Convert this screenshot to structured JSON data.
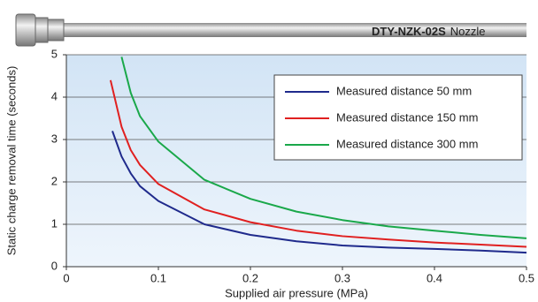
{
  "chart_data": {
    "type": "line",
    "annotations": [
      "DTY-NZK-02S",
      "Nozzle"
    ],
    "xlabel": "Supplied air pressure (MPa)",
    "ylabel": "Static charge removal time (seconds)",
    "xlim": [
      0,
      0.5
    ],
    "ylim": [
      0,
      5
    ],
    "xticks": [
      0,
      0.1,
      0.2,
      0.3,
      0.4,
      0.5
    ],
    "yticks": [
      0,
      1,
      2,
      3,
      4,
      5
    ],
    "grid": true,
    "legend": "upper right",
    "series": [
      {
        "name": "Measured distance 50 mm",
        "color": "#1f2a8c",
        "x": [
          0.05,
          0.06,
          0.07,
          0.08,
          0.1,
          0.15,
          0.2,
          0.25,
          0.3,
          0.35,
          0.4,
          0.45,
          0.5
        ],
        "values": [
          3.2,
          2.6,
          2.2,
          1.9,
          1.55,
          1.0,
          0.75,
          0.6,
          0.5,
          0.45,
          0.42,
          0.38,
          0.33
        ]
      },
      {
        "name": "Measured distance 150 mm",
        "color": "#e02020",
        "x": [
          0.048,
          0.06,
          0.07,
          0.08,
          0.1,
          0.15,
          0.2,
          0.25,
          0.3,
          0.35,
          0.4,
          0.45,
          0.5
        ],
        "values": [
          4.4,
          3.3,
          2.75,
          2.4,
          1.95,
          1.35,
          1.05,
          0.85,
          0.72,
          0.64,
          0.57,
          0.52,
          0.47
        ]
      },
      {
        "name": "Measured distance 300 mm",
        "color": "#1aa84a",
        "x": [
          0.06,
          0.07,
          0.08,
          0.1,
          0.15,
          0.2,
          0.25,
          0.3,
          0.35,
          0.4,
          0.45,
          0.5
        ],
        "values": [
          4.95,
          4.1,
          3.55,
          2.95,
          2.05,
          1.6,
          1.3,
          1.1,
          0.95,
          0.85,
          0.75,
          0.67
        ]
      }
    ]
  }
}
